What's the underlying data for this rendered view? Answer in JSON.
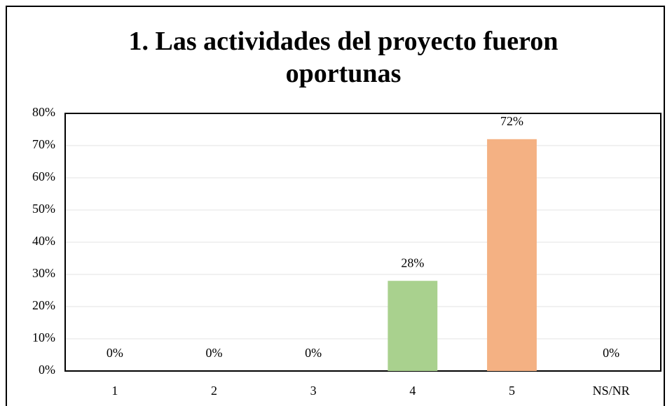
{
  "chart_data": {
    "type": "bar",
    "title": "1. Las actividades del proyecto fueron oportunas",
    "categories": [
      "1",
      "2",
      "3",
      "4",
      "5",
      "NS/NR"
    ],
    "values": [
      0,
      0,
      0,
      28,
      72,
      0
    ],
    "value_labels": [
      "0%",
      "0%",
      "0%",
      "28%",
      "72%",
      "0%"
    ],
    "colors": [
      "#a9d18e",
      "#a9d18e",
      "#a9d18e",
      "#a9d18e",
      "#f4b183",
      "#a9d18e"
    ],
    "ylim": [
      0,
      80
    ],
    "yticks": [
      {
        "value": 0,
        "label": "0%"
      },
      {
        "value": 10,
        "label": "10%"
      },
      {
        "value": 20,
        "label": "20%"
      },
      {
        "value": 30,
        "label": "30%"
      },
      {
        "value": 40,
        "label": "40%"
      },
      {
        "value": 50,
        "label": "50%"
      },
      {
        "value": 60,
        "label": "60%"
      },
      {
        "value": 70,
        "label": "70%"
      },
      {
        "value": 80,
        "label": "80%"
      }
    ],
    "grid": true
  }
}
